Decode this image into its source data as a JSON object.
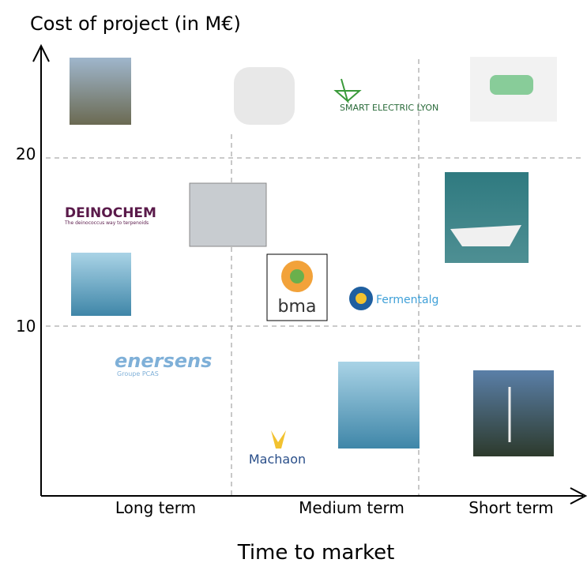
{
  "axes": {
    "y_title": "Cost of project (in M€)",
    "x_title": "Time to market",
    "y_ticks": [
      "20",
      "10"
    ],
    "x_columns": [
      "Long term",
      "Medium term",
      "Short term"
    ]
  },
  "logos": {
    "smart_electric": "SMART ELECTRIC LYON",
    "deinochem": "DEINOCHEM",
    "deinochem_tagline": "The deinococcus way to terpenoids",
    "bma": "bma",
    "fermentalg": "Fermentalg",
    "enersens": "enersens",
    "enersens_group": "Groupe PCAS",
    "machaon": "Machaon"
  }
}
